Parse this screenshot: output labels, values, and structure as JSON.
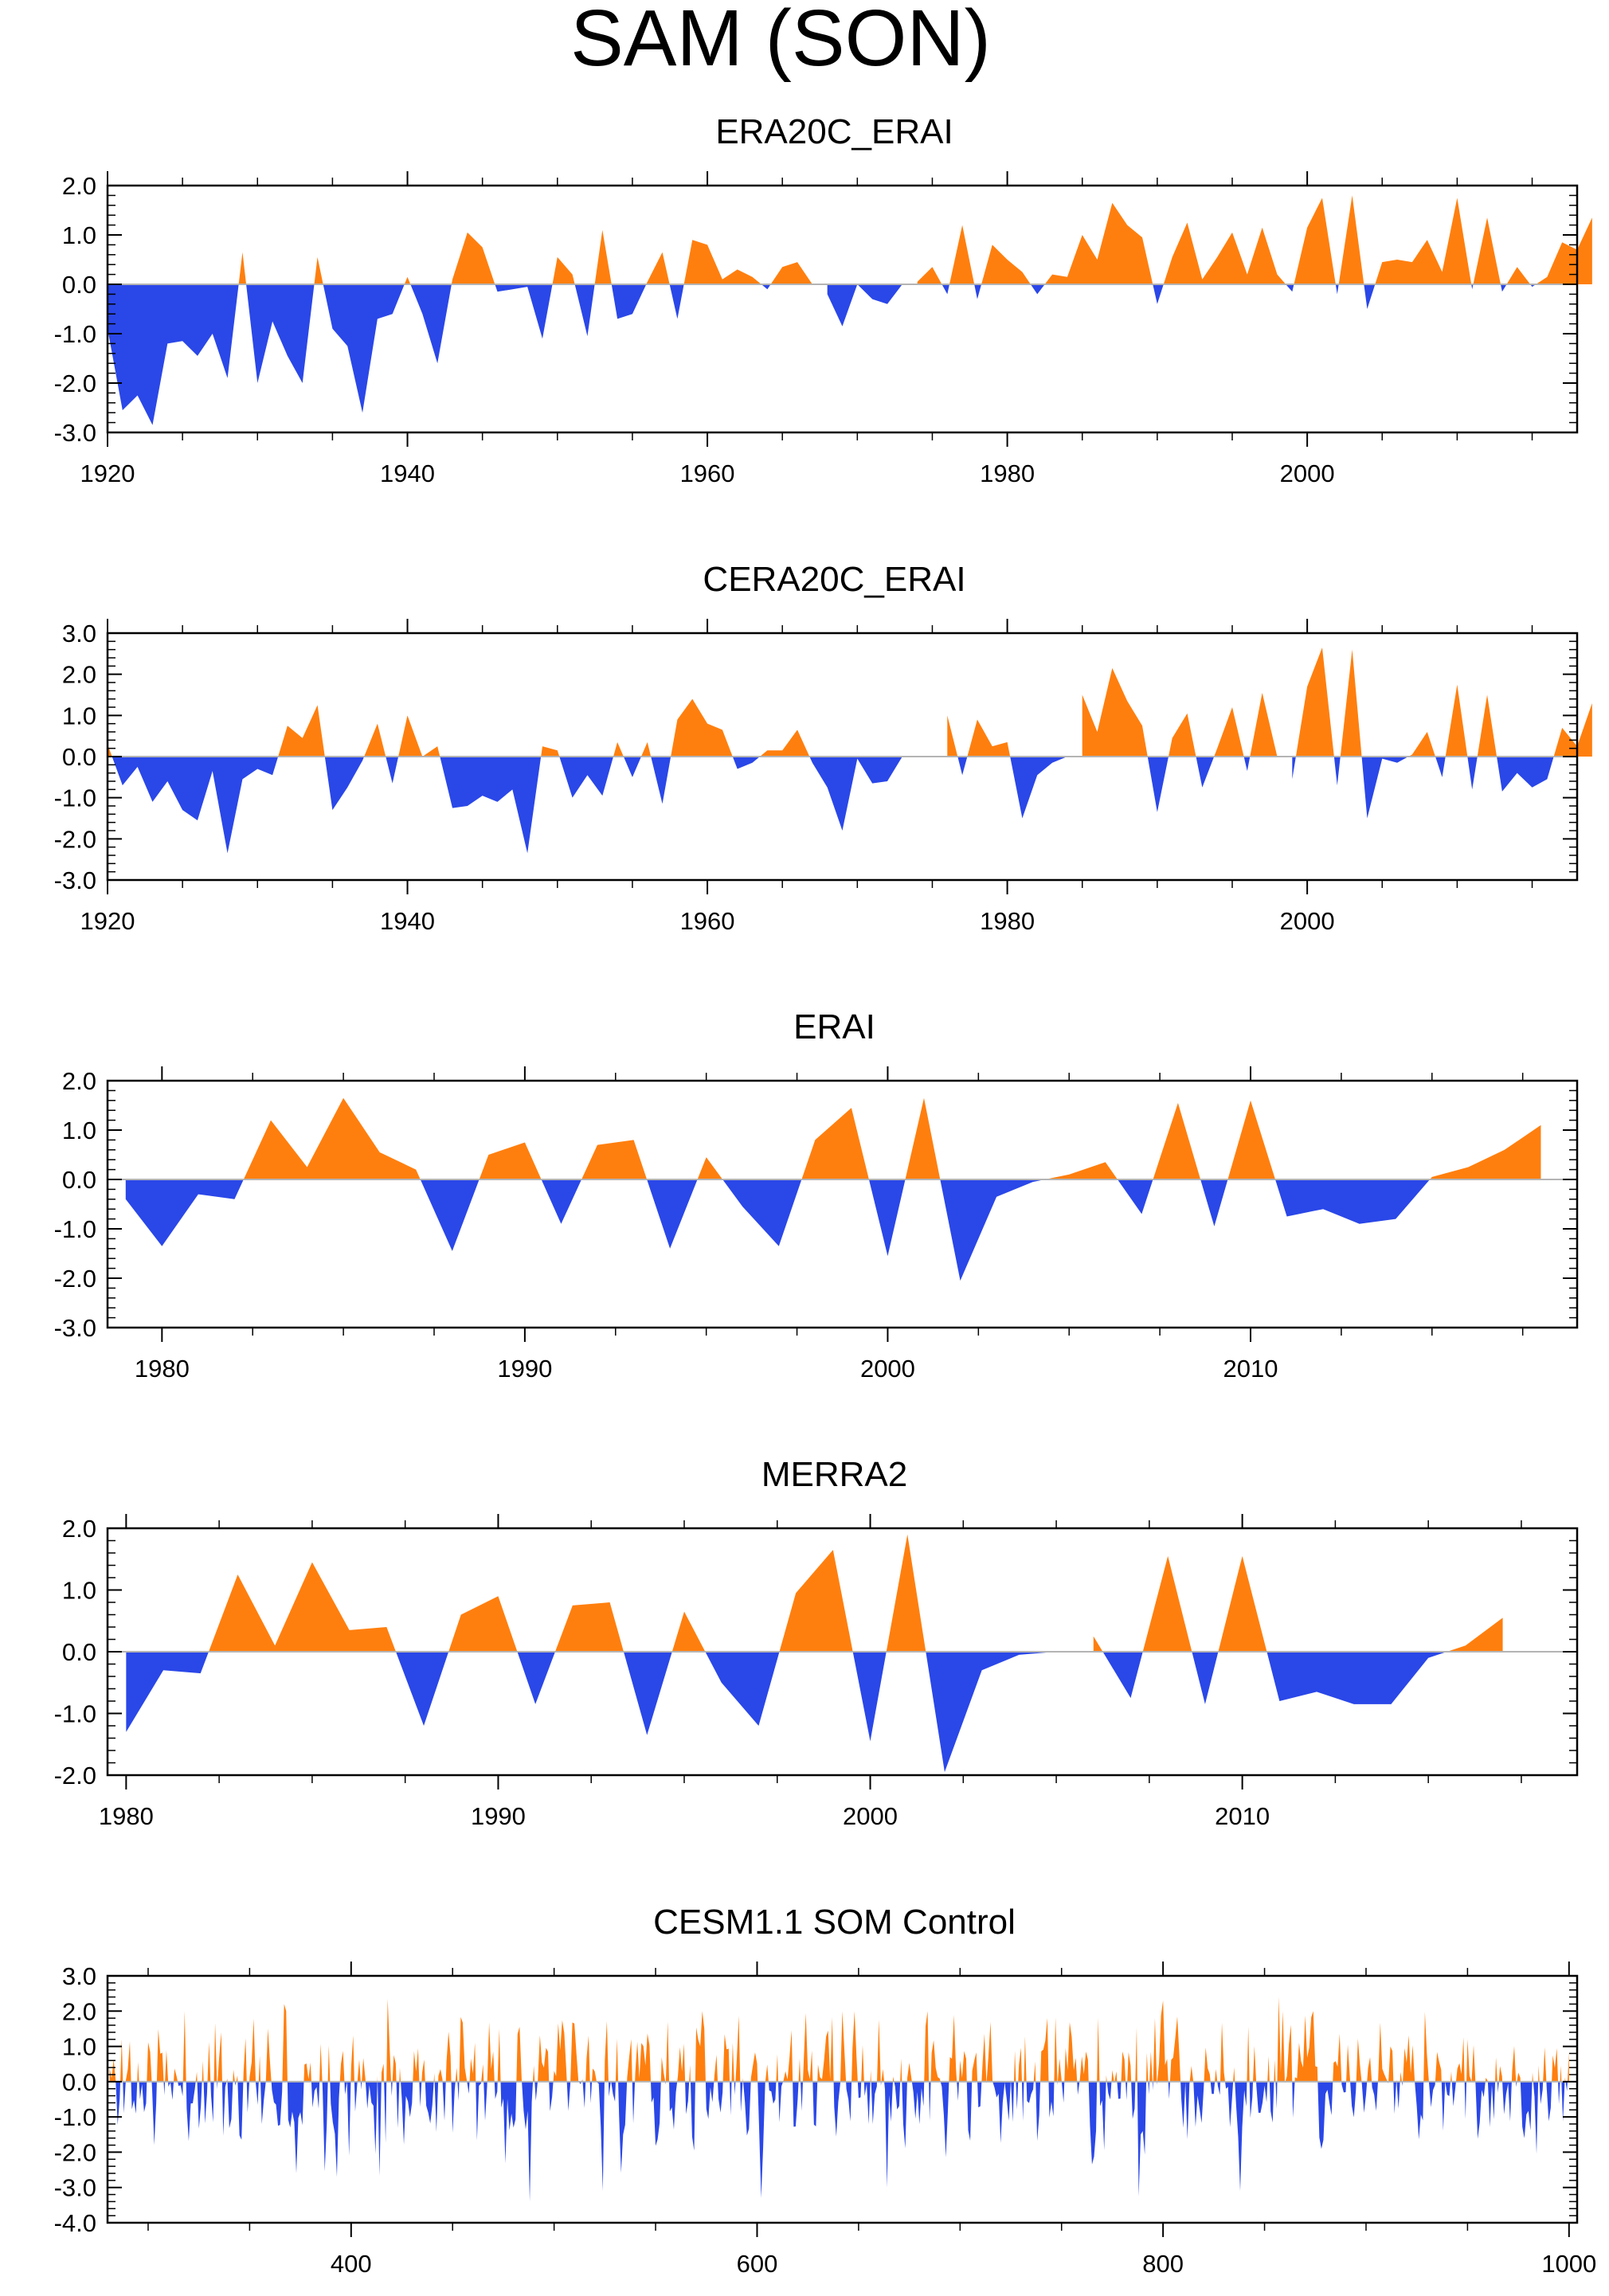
{
  "figure": {
    "title": "SAM (SON)",
    "colors": {
      "positive": "#ff7f0e",
      "negative": "#2a47e8",
      "zero_line": "#b4b4b4"
    }
  },
  "chart_data": [
    {
      "type": "area",
      "title": "ERA20C_ERAI",
      "xlabel": "",
      "ylabel": "",
      "xlim": [
        1920,
        2018
      ],
      "ylim": [
        -3.0,
        2.0
      ],
      "yticks": [
        2.0,
        1.0,
        0.0,
        -1.0,
        -2.0,
        -3.0
      ],
      "ytick_labels": [
        "2.0",
        "1.0",
        "0.0",
        "-1.0",
        "-2.0",
        "-3.0"
      ],
      "xticks": [
        1920,
        1940,
        1960,
        1980,
        2000
      ],
      "xtick_labels": [
        "1920",
        "1940",
        "1960",
        "1980",
        "2000"
      ],
      "x_start": 1920,
      "values": [
        -0.9,
        -2.55,
        -2.25,
        -2.85,
        -1.2,
        -1.15,
        -1.45,
        -1.0,
        -1.9,
        0.65,
        -2.0,
        -0.75,
        -1.45,
        -2.0,
        0.55,
        -0.9,
        -1.25,
        -2.6,
        -0.7,
        -0.6,
        0.15,
        -0.6,
        -1.6,
        0.1,
        1.05,
        0.75,
        -0.15,
        -0.1,
        -0.05,
        -1.1,
        0.55,
        0.2,
        -1.05,
        1.1,
        -0.7,
        -0.6,
        0.05,
        0.65,
        -0.7,
        0.9,
        0.8,
        0.1,
        0.3,
        0.15,
        -0.1,
        0.35,
        0.45,
        0.0,
        -0.2,
        -0.85,
        0.0,
        -0.3,
        -0.4,
        0.0,
        0.05,
        0.35,
        -0.2,
        1.2,
        -0.3,
        0.8,
        0.5,
        0.25,
        -0.2,
        0.2,
        0.15,
        1.0,
        0.5,
        1.65,
        1.2,
        0.95,
        -0.4,
        0.55,
        1.25,
        0.1,
        0.55,
        1.05,
        0.2,
        1.15,
        0.2,
        -0.15,
        1.15,
        1.75,
        -0.2,
        1.8,
        -0.5,
        0.45,
        0.5,
        0.45,
        0.9,
        0.25,
        1.75,
        -0.1,
        1.35,
        -0.15,
        0.35,
        -0.05,
        0.15,
        0.85,
        0.7,
        1.35
      ]
    },
    {
      "type": "area",
      "title": "CERA20C_ERAI",
      "xlabel": "",
      "ylabel": "",
      "xlim": [
        1920,
        2018
      ],
      "ylim": [
        -3.0,
        3.0
      ],
      "yticks": [
        3.0,
        2.0,
        1.0,
        0.0,
        -1.0,
        -2.0,
        -3.0
      ],
      "ytick_labels": [
        "3.0",
        "2.0",
        "1.0",
        "0.0",
        "-1.0",
        "-2.0",
        "-3.0"
      ],
      "xticks": [
        1920,
        1940,
        1960,
        1980,
        2000
      ],
      "xtick_labels": [
        "1920",
        "1940",
        "1960",
        "1980",
        "2000"
      ],
      "x_start": 1920,
      "values": [
        0.3,
        -0.7,
        -0.25,
        -1.1,
        -0.6,
        -1.3,
        -1.55,
        -0.35,
        -2.35,
        -0.55,
        -0.3,
        -0.45,
        0.75,
        0.45,
        1.25,
        -1.3,
        -0.75,
        -0.1,
        0.8,
        -0.65,
        1.0,
        0.0,
        0.25,
        -1.25,
        -1.2,
        -0.95,
        -1.1,
        -0.8,
        -2.35,
        0.25,
        0.15,
        -1.0,
        -0.45,
        -0.95,
        0.35,
        -0.5,
        0.35,
        -1.15,
        0.9,
        1.4,
        0.8,
        0.65,
        -0.3,
        -0.15,
        0.15,
        0.15,
        0.65,
        -0.15,
        -0.75,
        -1.8,
        -0.05,
        -0.65,
        -0.6,
        0.0,
        0.0,
        0.0,
        1.0,
        -0.45,
        0.9,
        0.25,
        0.35,
        -1.5,
        -0.45,
        -0.15,
        0.0,
        1.5,
        0.6,
        2.15,
        1.35,
        0.75,
        -1.35,
        0.45,
        1.05,
        -0.75,
        0.2,
        1.2,
        -0.35,
        1.55,
        0.0,
        -0.55,
        1.7,
        2.65,
        -0.7,
        2.6,
        -1.5,
        -0.05,
        -0.15,
        0.05,
        0.6,
        -0.5,
        1.75,
        -0.8,
        1.5,
        -0.85,
        -0.4,
        -0.75,
        -0.55,
        0.7,
        0.25,
        1.3
      ]
    },
    {
      "type": "area",
      "title": "ERAI",
      "xlabel": "",
      "ylabel": "",
      "xlim": [
        1978.5,
        2019
      ],
      "ylim": [
        -3.0,
        2.0
      ],
      "yticks": [
        2.0,
        1.0,
        0.0,
        -1.0,
        -2.0,
        -3.0
      ],
      "ytick_labels": [
        "2.0",
        "1.0",
        "0.0",
        "-1.0",
        "-2.0",
        "-3.0"
      ],
      "xticks": [
        1980,
        1990,
        2000,
        2010
      ],
      "xtick_labels": [
        "1980",
        "1990",
        "2000",
        "2010"
      ],
      "x_start": 1979,
      "values": [
        -0.4,
        -1.35,
        -0.3,
        -0.4,
        1.2,
        0.25,
        1.65,
        0.55,
        0.2,
        -1.45,
        0.5,
        0.75,
        -0.9,
        0.7,
        0.8,
        -1.4,
        0.45,
        -0.55,
        -1.35,
        0.8,
        1.45,
        -1.55,
        1.65,
        -2.05,
        -0.35,
        -0.05,
        0.1,
        0.35,
        -0.7,
        1.55,
        -0.95,
        1.6,
        -0.75,
        -0.6,
        -0.9,
        -0.8,
        0.05,
        0.25,
        0.6,
        1.1
      ]
    },
    {
      "type": "area",
      "title": "MERRA2",
      "xlabel": "",
      "ylabel": "",
      "xlim": [
        1979.5,
        2019
      ],
      "ylim": [
        -2.0,
        2.0
      ],
      "yticks": [
        2.0,
        1.0,
        0.0,
        -1.0,
        -2.0
      ],
      "ytick_labels": [
        "2.0",
        "1.0",
        "0.0",
        "-1.0",
        "-2.0"
      ],
      "xticks": [
        1980,
        1990,
        2000,
        2010
      ],
      "xtick_labels": [
        "1980",
        "1990",
        "2000",
        "2010"
      ],
      "x_start": 1980,
      "values": [
        -1.3,
        -0.3,
        -0.35,
        1.25,
        0.1,
        1.45,
        0.35,
        0.4,
        -1.2,
        0.6,
        0.9,
        -0.85,
        0.75,
        0.8,
        -1.35,
        0.65,
        -0.5,
        -1.2,
        0.95,
        1.65,
        -1.45,
        1.9,
        -1.95,
        -0.3,
        -0.05,
        0.0,
        0.25,
        -0.75,
        1.55,
        -0.85,
        1.55,
        -0.8,
        -0.65,
        -0.85,
        -0.85,
        -0.1,
        0.1,
        0.55
      ]
    },
    {
      "type": "area",
      "title": "CESM1.1 SOM Control",
      "xlabel": "",
      "ylabel": "",
      "xlim": [
        280,
        1004
      ],
      "ylim": [
        -4.0,
        3.0
      ],
      "yticks": [
        3.0,
        2.0,
        1.0,
        0.0,
        -1.0,
        -2.0,
        -3.0,
        -4.0
      ],
      "ytick_labels": [
        "3.0",
        "2.0",
        "1.0",
        "0.0",
        "-1.0",
        "-2.0",
        "-3.0",
        "-4.0"
      ],
      "xticks": [
        400,
        600,
        800,
        1000
      ],
      "xtick_labels": [
        "400",
        "600",
        "800",
        "1000"
      ],
      "x_start": 281,
      "x_end": 1000,
      "seed": 11,
      "amplitude": 1.25,
      "extremes": [
        [
          367,
          2.2
        ],
        [
          418,
          2.35
        ],
        [
          488,
          -3.4
        ],
        [
          524,
          -3.1
        ],
        [
          602,
          -3.3
        ],
        [
          664,
          -3.0
        ],
        [
          788,
          -3.25
        ],
        [
          800,
          2.3
        ],
        [
          838,
          -3.1
        ],
        [
          857,
          2.4
        ]
      ]
    }
  ]
}
